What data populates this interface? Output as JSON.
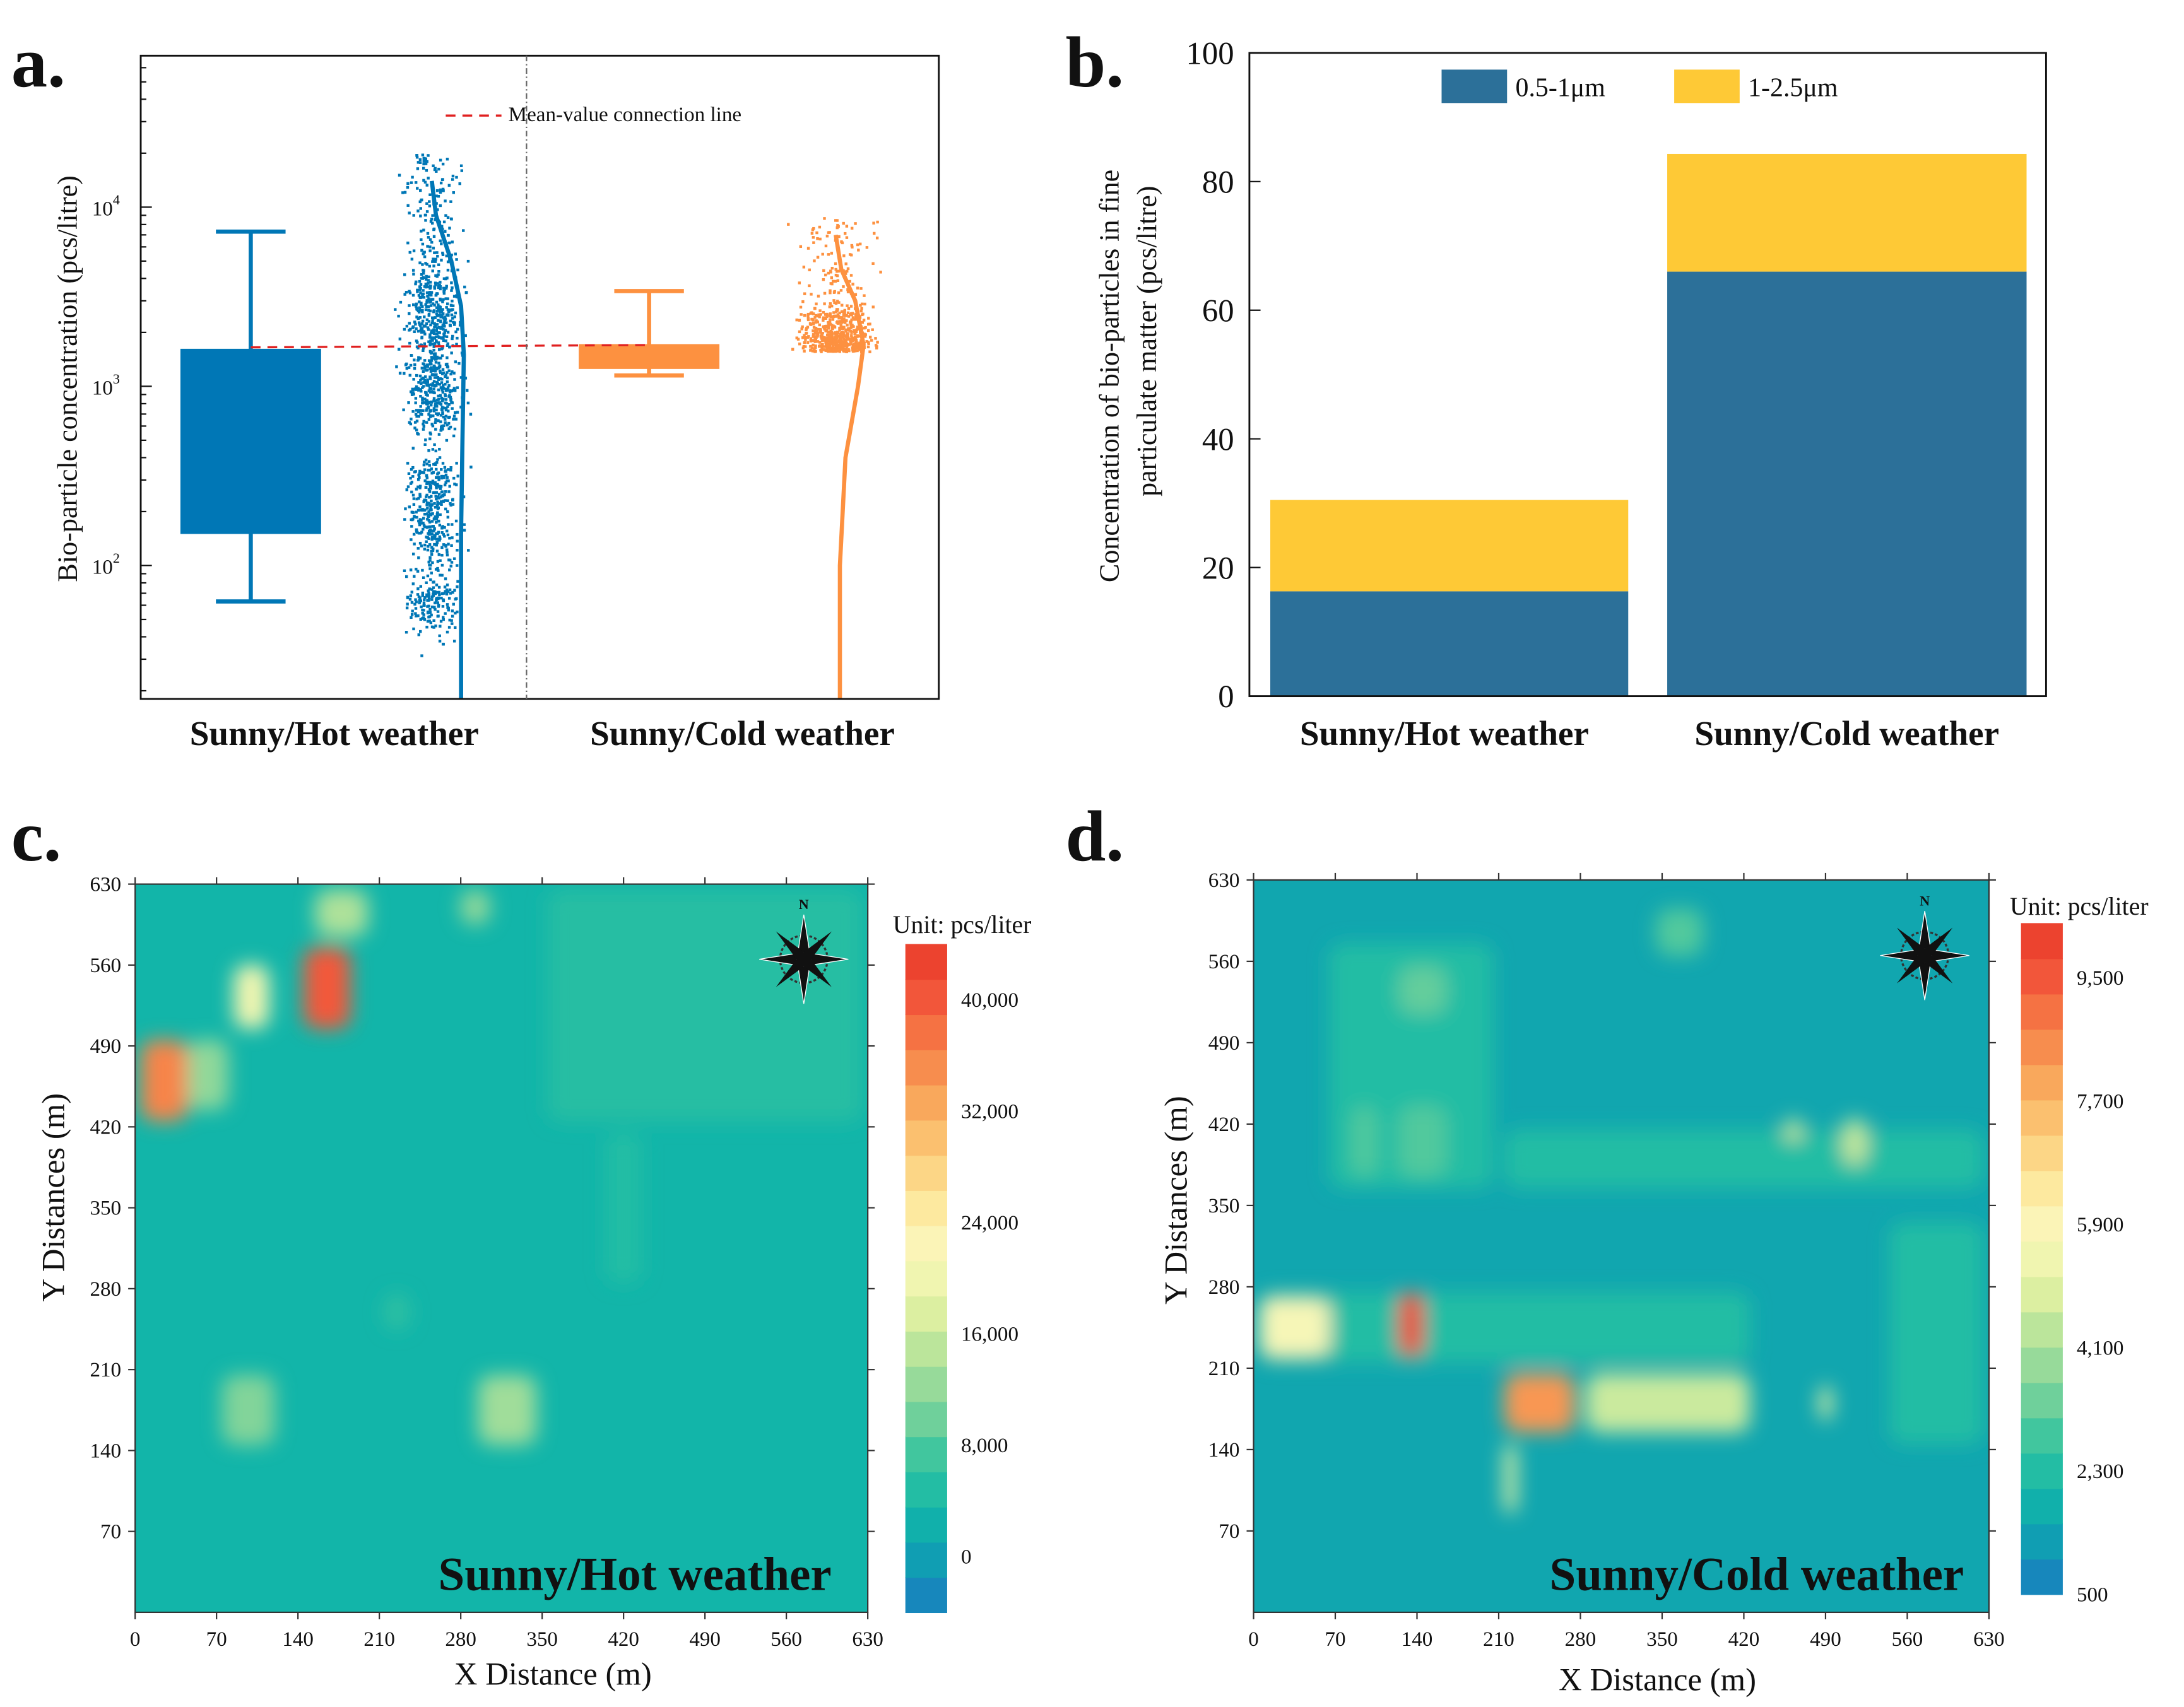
{
  "chart_data": [
    {
      "panel": "a.",
      "type": "box+scatter",
      "ylabel": "Bio-particle concentration (pcs/litre)",
      "yscale": "log",
      "ylim": [
        18,
        70000
      ],
      "yticks": [
        {
          "v": 100,
          "label": "10",
          "exp": "2"
        },
        {
          "v": 1000,
          "label": "10",
          "exp": "3"
        },
        {
          "v": 10000,
          "label": "10",
          "exp": "4"
        }
      ],
      "categories": [
        "Sunny/Hot weather",
        "Sunny/Cold weather"
      ],
      "legend": "Mean-value connection line",
      "series": [
        {
          "name": "Sunny/Hot weather",
          "color": "#0077b6",
          "whisker_low": 63,
          "q1": 150,
          "q3": 1620,
          "whisker_high": 7300,
          "mean": 1650,
          "scatter_range": [
            30,
            40000
          ]
        },
        {
          "name": "Sunny/Cold weather",
          "color": "#fd9140",
          "whisker_low": 1150,
          "q1": 1250,
          "q3": 1720,
          "whisker_high": 3400,
          "mean": 1700,
          "scatter_range": [
            1100,
            9500
          ]
        }
      ]
    },
    {
      "panel": "b.",
      "type": "bar",
      "stacked": true,
      "ylabel_lines": [
        "Concentration of bio-particles in fine",
        "particulate matter (pcs/litre)"
      ],
      "ylim": [
        0,
        100
      ],
      "yticks": [
        0,
        20,
        40,
        60,
        80,
        100
      ],
      "categories": [
        "Sunny/Hot weather",
        "Sunny/Cold weather"
      ],
      "series": [
        {
          "name": "0.5-1μm",
          "color": "#2c7099",
          "values": [
            16.3,
            66.0
          ]
        },
        {
          "name": "1-2.5μm",
          "color": "#fec936",
          "values": [
            14.2,
            18.3
          ]
        }
      ]
    },
    {
      "panel": "c.",
      "type": "heatmap",
      "title": "Sunny/Hot weather",
      "xlabel": "X Distance (m)",
      "ylabel": "Y Distances (m)",
      "xticks": [
        0,
        70,
        140,
        210,
        280,
        350,
        420,
        490,
        560,
        630
      ],
      "yticks": [
        70,
        140,
        210,
        280,
        350,
        420,
        490,
        560,
        630
      ],
      "unit": "Unit: pcs/liter",
      "compass": "N",
      "colorbar_min": -4000,
      "colorbar_max": 44000,
      "colorbar_labels": [
        "0",
        "8,000",
        "16,000",
        "24,000",
        "32,000",
        "40,000"
      ],
      "colorbar_values": [
        0,
        8000,
        16000,
        24000,
        32000,
        40000
      ],
      "background_value": 3000,
      "hotspots": [
        {
          "x": [
            350,
            630
          ],
          "y": [
            420,
            630
          ],
          "v": 5200
        },
        {
          "x": [
            400,
            440
          ],
          "y": [
            280,
            420
          ],
          "v": 5000
        },
        {
          "x": [
            0,
            50
          ],
          "y": [
            420,
            500
          ],
          "v": 36000
        },
        {
          "x": [
            40,
            85
          ],
          "y": [
            430,
            500
          ],
          "v": 12000
        },
        {
          "x": [
            80,
            120
          ],
          "y": [
            500,
            565
          ],
          "v": 20000
        },
        {
          "x": [
            140,
            190
          ],
          "y": [
            500,
            580
          ],
          "v": 40000
        },
        {
          "x": [
            150,
            205
          ],
          "y": [
            580,
            630
          ],
          "v": 14000
        },
        {
          "x": [
            275,
            310
          ],
          "y": [
            590,
            630
          ],
          "v": 12000
        },
        {
          "x": [
            70,
            125
          ],
          "y": [
            140,
            210
          ],
          "v": 11000
        },
        {
          "x": [
            290,
            350
          ],
          "y": [
            140,
            210
          ],
          "v": 13000
        },
        {
          "x": [
            210,
            240
          ],
          "y": [
            240,
            280
          ],
          "v": 6000
        }
      ]
    },
    {
      "panel": "d.",
      "type": "heatmap",
      "title": "Sunny/Cold weather",
      "xlabel": "X Distance (m)",
      "ylabel": "Y Distances (m)",
      "xticks": [
        0,
        70,
        140,
        210,
        280,
        350,
        420,
        490,
        560,
        630
      ],
      "yticks": [
        70,
        140,
        210,
        280,
        350,
        420,
        490,
        560,
        630
      ],
      "unit": "Unit: pcs/liter",
      "compass": "N",
      "colorbar_min": 500,
      "colorbar_max": 10300,
      "colorbar_labels": [
        "500",
        "2,300",
        "4,100",
        "5,900",
        "7,700",
        "9,500"
      ],
      "colorbar_values": [
        500,
        2300,
        4100,
        5900,
        7700,
        9500
      ],
      "background_value": 1500,
      "hotspots": [
        {
          "x": [
            60,
            210
          ],
          "y": [
            360,
            580
          ],
          "v": 2300
        },
        {
          "x": [
            210,
            630
          ],
          "y": [
            360,
            420
          ],
          "v": 2300
        },
        {
          "x": [
            0,
            430
          ],
          "y": [
            210,
            280
          ],
          "v": 2300
        },
        {
          "x": [
            540,
            630
          ],
          "y": [
            140,
            340
          ],
          "v": 2300
        },
        {
          "x": [
            120,
            170
          ],
          "y": [
            510,
            560
          ],
          "v": 3200
        },
        {
          "x": [
            80,
            110
          ],
          "y": [
            370,
            440
          ],
          "v": 3000
        },
        {
          "x": [
            120,
            170
          ],
          "y": [
            370,
            440
          ],
          "v": 3000
        },
        {
          "x": [
            340,
            390
          ],
          "y": [
            560,
            610
          ],
          "v": 3000
        },
        {
          "x": [
            0,
            70
          ],
          "y": [
            215,
            275
          ],
          "v": 5600
        },
        {
          "x": [
            120,
            150
          ],
          "y": [
            215,
            280
          ],
          "v": 9900
        },
        {
          "x": [
            210,
            280
          ],
          "y": [
            150,
            210
          ],
          "v": 8300
        },
        {
          "x": [
            280,
            430
          ],
          "y": [
            150,
            210
          ],
          "v": 4600
        },
        {
          "x": [
            210,
            230
          ],
          "y": [
            80,
            150
          ],
          "v": 5000
        },
        {
          "x": [
            450,
            475
          ],
          "y": [
            400,
            430
          ],
          "v": 4500
        },
        {
          "x": [
            500,
            530
          ],
          "y": [
            380,
            430
          ],
          "v": 4500
        },
        {
          "x": [
            480,
            500
          ],
          "y": [
            160,
            200
          ],
          "v": 5000
        }
      ]
    }
  ]
}
